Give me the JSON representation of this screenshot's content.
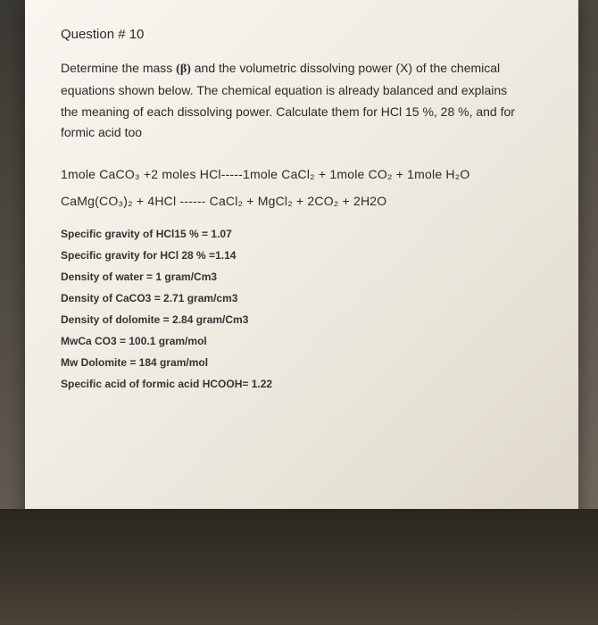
{
  "title": "Question # 10",
  "intro_lines": {
    "l1": "Determine the mass ",
    "beta": "(β)",
    "l1b": " and the volumetric dissolving power (X) of the chemical",
    "l2": "equations shown below. The chemical equation is already balanced and explains",
    "l3": "the meaning of each dissolving power. Calculate them for HCl 15 %, 28 %, and for",
    "l4": "formic acid too"
  },
  "equations": {
    "eq1": "1mole CaCO₃ +2 moles HCl-----1mole CaCl₂ + 1mole CO₂ + 1mole H₂O",
    "eq2": "CaMg(CO₃)₂  +  4HCl ------ CaCl₂ + MgCl₂  +  2CO₂  + 2H2O"
  },
  "data": {
    "d1": "Specific gravity of HCl15 % = 1.07",
    "d2": "Specific gravity for HCl 28 % =1.14",
    "d3": "Density of water = 1 gram/Cm3",
    "d4": "Density of CaCO3 = 2.71 gram/cm3",
    "d5": "Density of dolomite = 2.84 gram/Cm3",
    "d6": "MwCa CO3 = 100.1 gram/mol",
    "d7": "Mw Dolomite = 184 gram/mol",
    "d8": "Specific acid of formic acid HCOOH= 1.22"
  }
}
